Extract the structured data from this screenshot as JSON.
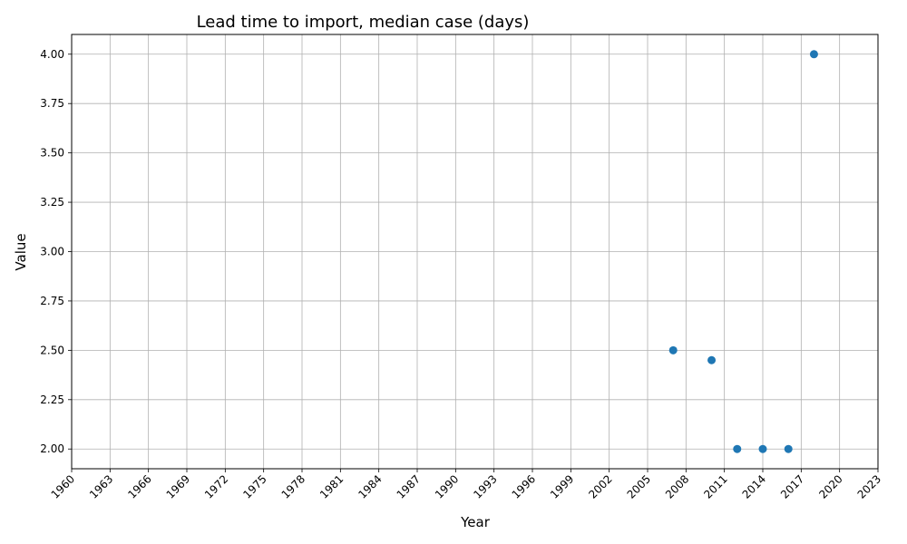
{
  "chart_data": {
    "type": "scatter",
    "title": "Lead time to import, median case (days)",
    "xlabel": "Year",
    "ylabel": "Value",
    "xlim": [
      1960,
      2023
    ],
    "ylim": [
      1.9,
      4.1
    ],
    "grid": true,
    "marker_color": "#1f77b4",
    "x_ticks": [
      1960,
      1963,
      1966,
      1969,
      1972,
      1975,
      1978,
      1981,
      1984,
      1987,
      1990,
      1993,
      1996,
      1999,
      2002,
      2005,
      2008,
      2011,
      2014,
      2017,
      2020,
      2023
    ],
    "y_ticks": [
      "2.00",
      "2.25",
      "2.50",
      "2.75",
      "3.00",
      "3.25",
      "3.50",
      "3.75",
      "4.00"
    ],
    "points": [
      {
        "x": 2007,
        "y": 2.5
      },
      {
        "x": 2010,
        "y": 2.45
      },
      {
        "x": 2012,
        "y": 2.0
      },
      {
        "x": 2014,
        "y": 2.0
      },
      {
        "x": 2016,
        "y": 2.0
      },
      {
        "x": 2018,
        "y": 4.0
      }
    ]
  }
}
